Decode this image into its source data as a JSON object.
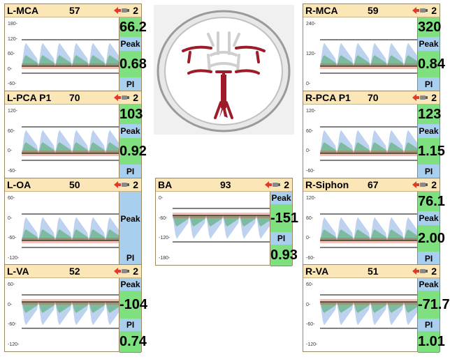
{
  "panels": [
    {
      "id": "l-mca",
      "name": "L-MCA",
      "depth": "57",
      "gain": "2",
      "peak": "66.2",
      "peak_label": "Peak",
      "pi": "0.68",
      "pi_label": "PI",
      "ticks": [
        "180-",
        "120-",
        "60-",
        "0-",
        "-60-"
      ],
      "layout": "val-top"
    },
    {
      "id": "l-pca-p1",
      "name": "L-PCA P1",
      "depth": "70",
      "gain": "2",
      "peak": "103",
      "peak_label": "Peak",
      "pi": "0.92",
      "pi_label": "PI",
      "ticks": [
        "120-",
        "60-",
        "0-",
        "-60-"
      ],
      "layout": "val-top"
    },
    {
      "id": "l-oa",
      "name": "L-OA",
      "depth": "50",
      "gain": "2",
      "peak": "",
      "peak_label": "Peak",
      "pi": "",
      "pi_label": "PI",
      "ticks": [
        "60-",
        "0-",
        "-60-",
        "-120-"
      ],
      "layout": "empty"
    },
    {
      "id": "l-va",
      "name": "L-VA",
      "depth": "52",
      "gain": "2",
      "peak": "-104",
      "peak_label": "Peak",
      "pi": "0.74",
      "pi_label": "PI",
      "ticks": [
        "60-",
        "0-",
        "-60-",
        "-120-"
      ],
      "layout": "label-top"
    },
    {
      "id": "r-mca",
      "name": "R-MCA",
      "depth": "59",
      "gain": "2",
      "peak": "320",
      "peak_label": "Peak",
      "pi": "0.84",
      "pi_label": "PI",
      "ticks": [
        "240-",
        "120-",
        "0-"
      ],
      "layout": "val-top"
    },
    {
      "id": "r-pca-p1",
      "name": "R-PCA P1",
      "depth": "70",
      "gain": "2",
      "peak": "123",
      "peak_label": "Peak",
      "pi": "1.15",
      "pi_label": "PI",
      "ticks": [
        "120-",
        "60-",
        "0-",
        "-60-"
      ],
      "layout": "val-top"
    },
    {
      "id": "r-siphon",
      "name": "R-Siphon",
      "depth": "67",
      "gain": "2",
      "peak": "76.1",
      "peak_label": "Peak",
      "pi": "2.00",
      "pi_label": "PI",
      "ticks": [
        "120-",
        "60-",
        "0-",
        "-60-"
      ],
      "layout": "val-top"
    },
    {
      "id": "r-va",
      "name": "R-VA",
      "depth": "51",
      "gain": "2",
      "peak": "-71.7",
      "peak_label": "Peak",
      "pi": "1.01",
      "pi_label": "PI",
      "ticks": [
        "60-",
        "0-",
        "-60-",
        "-120-"
      ],
      "layout": "label-top"
    },
    {
      "id": "ba",
      "name": "BA",
      "depth": "93",
      "gain": "2",
      "peak": "-151",
      "peak_label": "Peak",
      "pi": "0.93",
      "pi_label": "PI",
      "ticks": [
        "0-",
        "-60-",
        "-120-",
        "-180-"
      ],
      "layout": "label-top"
    }
  ]
}
